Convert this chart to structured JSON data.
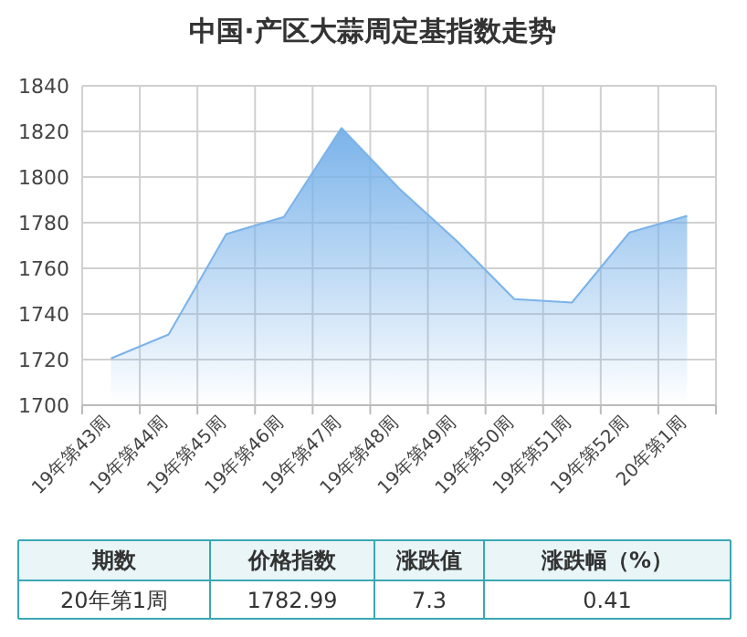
{
  "chart_data": {
    "type": "area",
    "title": "中国·产区大蒜周定基指数走势",
    "categories": [
      "19年第43周",
      "19年第44周",
      "19年第45周",
      "19年第46周",
      "19年第47周",
      "19年第48周",
      "19年第49周",
      "19年第50周",
      "19年第51周",
      "19年第52周",
      "20年第1周"
    ],
    "series": [
      {
        "color": "#7ab3ea",
        "values": [
          1720.5,
          1731,
          1775,
          1782.5,
          1821.5,
          1795,
          1772,
          1746.5,
          1745,
          1775.7,
          1782.99
        ]
      }
    ],
    "ylim": [
      1700,
      1840
    ],
    "yticks": [
      1700,
      1720,
      1740,
      1760,
      1780,
      1800,
      1820,
      1840
    ],
    "grid": true,
    "annotations": [
      "期数",
      "价格指数",
      "涨跌值",
      "涨跌幅（%）",
      "20年第1周",
      "1782.99",
      "7.3",
      "0.41"
    ]
  }
}
